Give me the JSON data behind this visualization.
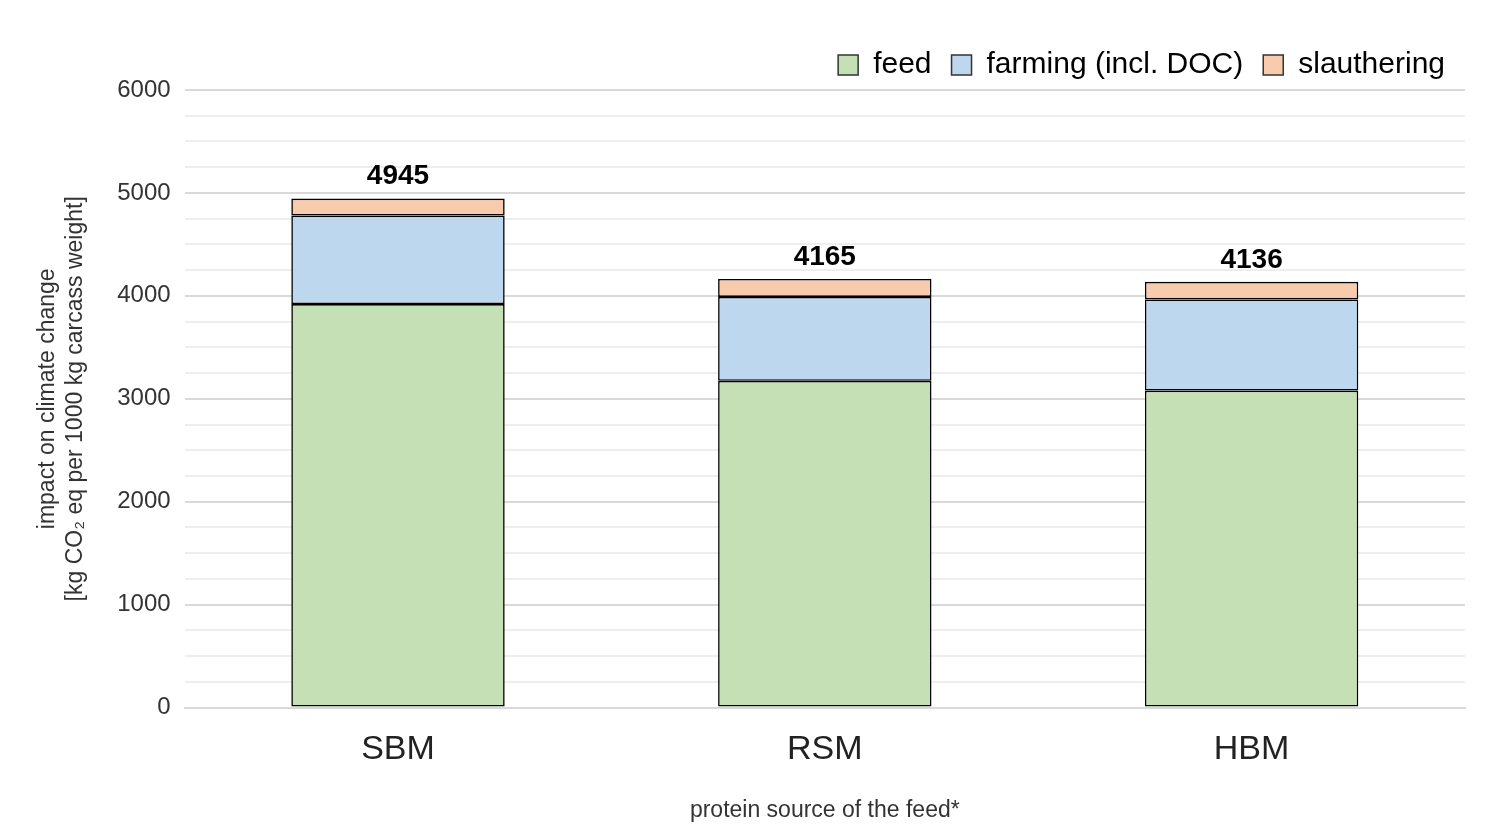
{
  "chart_data": {
    "type": "bar",
    "stacked": true,
    "xlabel": "protein source of the feed*",
    "ylabel": "impact on climate change\n[kg CO₂ eq per 1000 kg carcass weight]",
    "categories": [
      "SBM",
      "RSM",
      "HBM"
    ],
    "series": [
      {
        "name": "feed",
        "color": "#c5e0b4",
        "values": [
          3920,
          3175,
          3080
        ]
      },
      {
        "name": "farming (incl. DOC)",
        "color": "#bdd7ee",
        "values": [
          860,
          815,
          885
        ]
      },
      {
        "name": "slauthering",
        "color": "#f8cbad",
        "values": [
          165,
          175,
          171
        ]
      }
    ],
    "totals": [
      "4945",
      "4165",
      "4136"
    ],
    "ylim": [
      0,
      6000
    ],
    "yticks": [
      0,
      {
        "value": 250,
        "label": null
      },
      {
        "value": 500,
        "label": null
      },
      {
        "value": 750,
        "label": null
      },
      1000,
      {
        "value": 1250,
        "label": null
      },
      {
        "value": 1500,
        "label": null
      },
      {
        "value": 1750,
        "label": null
      },
      2000,
      {
        "value": 2250,
        "label": null
      },
      {
        "value": 2500,
        "label": null
      },
      {
        "value": 2750,
        "label": null
      },
      3000,
      {
        "value": 3250,
        "label": null
      },
      {
        "value": 3500,
        "label": null
      },
      {
        "value": 3750,
        "label": null
      },
      4000,
      {
        "value": 4250,
        "label": null
      },
      {
        "value": 4500,
        "label": null
      },
      {
        "value": 4750,
        "label": null
      },
      5000,
      {
        "value": 5250,
        "label": null
      },
      {
        "value": 5500,
        "label": null
      },
      {
        "value": 5750,
        "label": null
      },
      6000
    ],
    "grid": "y",
    "legend": "top right"
  }
}
